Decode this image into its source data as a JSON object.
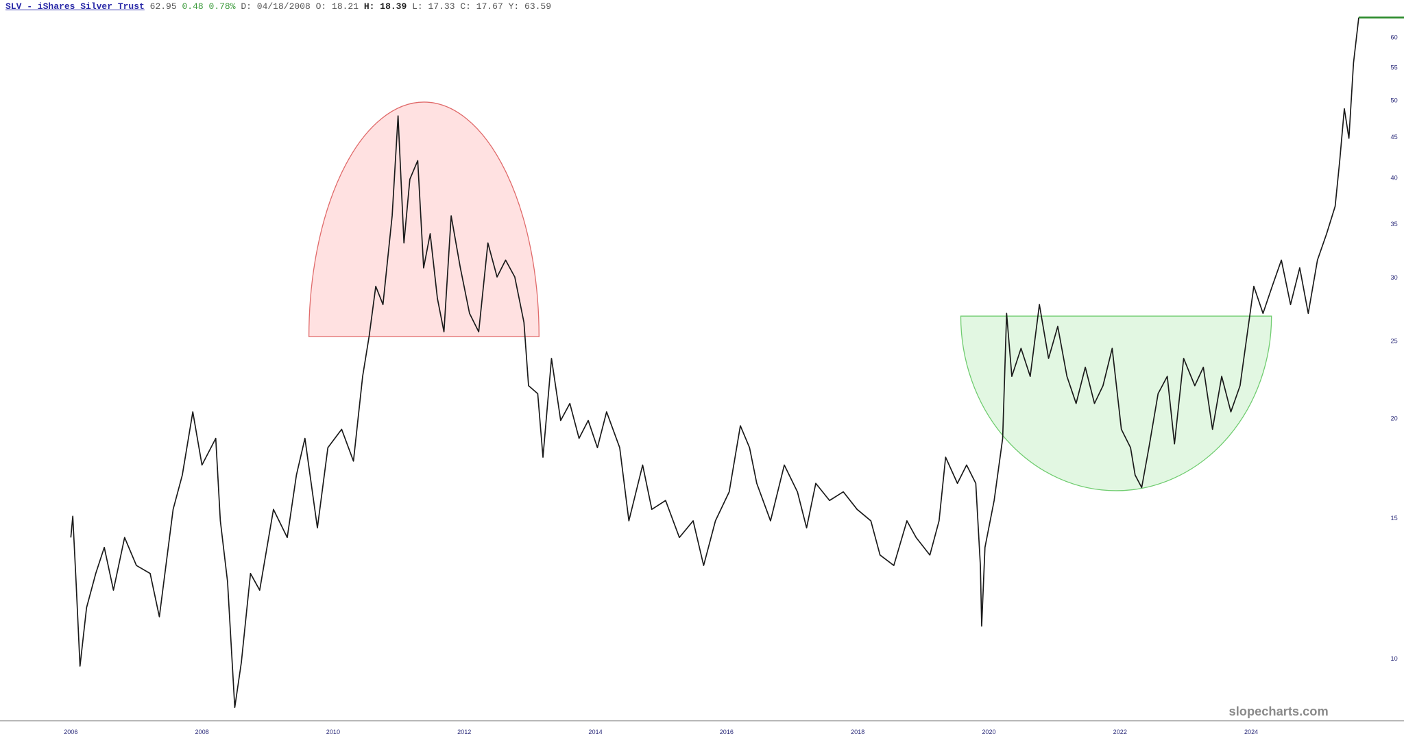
{
  "header": {
    "symbol_link": "SLV - iShares Silver Trust",
    "last": "62.95",
    "change": "0.48",
    "change_pct": "0.78%",
    "fields": [
      {
        "label": "D:",
        "value": "04/18/2008"
      },
      {
        "label": "O:",
        "value": "18.21"
      },
      {
        "label": "H:",
        "value": "18.39"
      },
      {
        "label": "L:",
        "value": "17.33"
      },
      {
        "label": "C:",
        "value": "17.67"
      },
      {
        "label": "Y:",
        "value": "63.59"
      }
    ]
  },
  "chart_data": {
    "type": "line",
    "log_y": true,
    "color": "#1a1a1a",
    "last_line_color": "#2a8a2a",
    "watermark": "slopecharts.com",
    "xlim": [
      2004.92,
      2026.33
    ],
    "xticks": [
      2006,
      2008,
      2010,
      2012,
      2014,
      2016,
      2018,
      2020,
      2022,
      2024
    ],
    "ylim": [
      8.37,
      66.9
    ],
    "yticks": [
      10,
      15,
      20,
      25,
      30,
      35,
      40,
      45,
      50,
      55,
      60
    ],
    "x": [
      2006.0,
      2006.03,
      2006.08,
      2006.14,
      2006.24,
      2006.38,
      2006.51,
      2006.65,
      2006.82,
      2007.0,
      2007.21,
      2007.35,
      2007.56,
      2007.7,
      2007.86,
      2008.0,
      2008.21,
      2008.28,
      2008.39,
      2008.5,
      2008.6,
      2008.74,
      2008.88,
      2009.09,
      2009.3,
      2009.44,
      2009.57,
      2009.76,
      2009.92,
      2010.13,
      2010.31,
      2010.45,
      2010.55,
      2010.65,
      2010.76,
      2010.9,
      2010.99,
      2011.08,
      2011.17,
      2011.29,
      2011.38,
      2011.48,
      2011.59,
      2011.69,
      2011.8,
      2011.94,
      2012.08,
      2012.22,
      2012.36,
      2012.5,
      2012.63,
      2012.77,
      2012.91,
      2012.98,
      2013.12,
      2013.2,
      2013.33,
      2013.47,
      2013.61,
      2013.75,
      2013.89,
      2014.03,
      2014.17,
      2014.37,
      2014.51,
      2014.72,
      2014.86,
      2015.07,
      2015.28,
      2015.49,
      2015.65,
      2015.83,
      2016.04,
      2016.21,
      2016.35,
      2016.46,
      2016.67,
      2016.88,
      2017.08,
      2017.22,
      2017.36,
      2017.57,
      2017.78,
      2017.99,
      2018.2,
      2018.34,
      2018.55,
      2018.75,
      2018.89,
      2019.1,
      2019.24,
      2019.34,
      2019.52,
      2019.66,
      2019.8,
      2019.87,
      2019.89,
      2019.94,
      2020.08,
      2020.21,
      2020.27,
      2020.35,
      2020.49,
      2020.63,
      2020.77,
      2020.91,
      2021.05,
      2021.19,
      2021.33,
      2021.47,
      2021.61,
      2021.74,
      2021.88,
      2022.02,
      2022.16,
      2022.23,
      2022.33,
      2022.44,
      2022.58,
      2022.72,
      2022.83,
      2022.97,
      2023.14,
      2023.27,
      2023.41,
      2023.55,
      2023.69,
      2023.83,
      2024.04,
      2024.18,
      2024.32,
      2024.46,
      2024.6,
      2024.74,
      2024.87,
      2025.01,
      2025.15,
      2025.28,
      2025.35,
      2025.42,
      2025.49,
      2025.56,
      2025.64
    ],
    "values": [
      14.2,
      15.1,
      12.5,
      9.8,
      11.6,
      12.8,
      13.8,
      12.2,
      14.2,
      13.1,
      12.8,
      11.3,
      15.4,
      17.0,
      20.4,
      17.5,
      18.9,
      14.9,
      12.5,
      8.7,
      9.9,
      12.8,
      12.2,
      15.4,
      14.2,
      17.0,
      18.9,
      14.6,
      18.4,
      19.4,
      17.7,
      22.6,
      25.4,
      29.3,
      27.8,
      35.9,
      47.9,
      33.2,
      39.9,
      42.1,
      30.9,
      34.1,
      28.3,
      25.7,
      35.9,
      30.9,
      27.1,
      25.7,
      33.2,
      30.1,
      31.6,
      30.1,
      26.4,
      22.0,
      21.5,
      17.9,
      23.8,
      19.9,
      20.9,
      18.9,
      19.9,
      18.4,
      20.4,
      18.4,
      14.9,
      17.5,
      15.4,
      15.8,
      14.2,
      14.9,
      13.1,
      14.9,
      16.2,
      19.6,
      18.4,
      16.6,
      14.9,
      17.5,
      16.2,
      14.6,
      16.6,
      15.8,
      16.2,
      15.4,
      14.9,
      13.5,
      13.1,
      14.9,
      14.2,
      13.5,
      14.9,
      17.9,
      16.6,
      17.5,
      16.6,
      13.1,
      11.0,
      13.8,
      15.8,
      18.9,
      27.1,
      22.6,
      24.5,
      22.6,
      27.8,
      23.8,
      26.1,
      22.6,
      20.9,
      23.2,
      20.9,
      22.0,
      24.5,
      19.4,
      18.4,
      17.0,
      16.4,
      18.4,
      21.5,
      22.6,
      18.6,
      23.8,
      22.0,
      23.2,
      19.4,
      22.6,
      20.4,
      22.0,
      29.3,
      27.1,
      29.3,
      31.6,
      27.8,
      30.9,
      27.1,
      31.6,
      34.1,
      36.9,
      42.1,
      48.9,
      44.9,
      55.8,
      63.6
    ]
  }
}
